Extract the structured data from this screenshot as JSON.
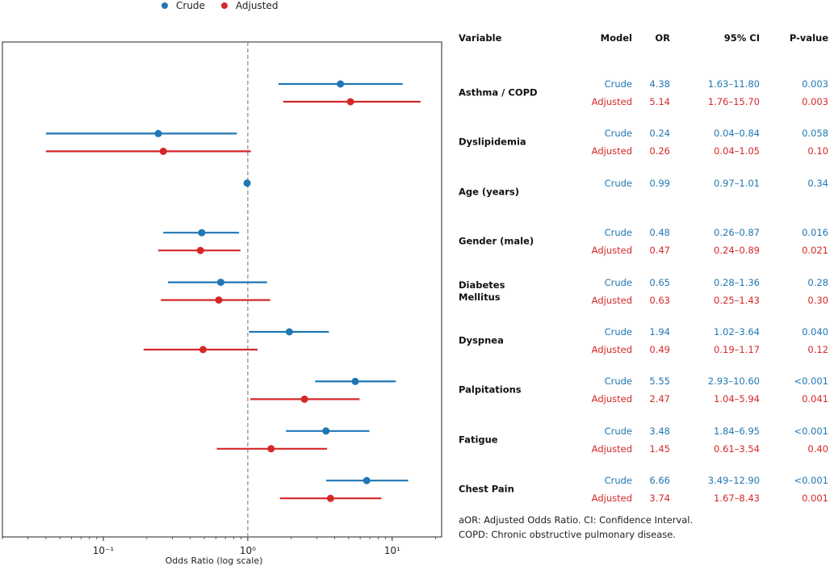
{
  "legend": {
    "crude": "Crude",
    "adjusted": "Adjusted"
  },
  "colors": {
    "crude": "#1f77b4",
    "adjusted": "#d62728"
  },
  "table": {
    "headers": {
      "variable": "Variable",
      "model": "Model",
      "or": "OR",
      "ci": "95% CI",
      "p": "P-value"
    }
  },
  "notes": [
    "aOR: Adjusted Odds Ratio. CI: Confidence Interval.",
    "COPD: Chronic obstructive pulmonary disease."
  ],
  "chart_data": {
    "type": "forest",
    "xlabel": "Odds Ratio (log scale)",
    "xscale": "log",
    "xlim": [
      0.02,
      22
    ],
    "xticks": [
      {
        "value": 0.1,
        "label": "10⁻¹"
      },
      {
        "value": 1,
        "label": "10⁰"
      },
      {
        "value": 10,
        "label": "10¹"
      }
    ],
    "reference_line": 1,
    "legend_position": "top-center",
    "variables": [
      {
        "name": "Asthma / COPD",
        "rows": [
          {
            "model": "Crude",
            "or": 4.38,
            "lo": 1.63,
            "hi": 11.8,
            "or_text": "4.38",
            "ci_text": "1.63–11.80",
            "p": "0.003"
          },
          {
            "model": "Adjusted",
            "or": 5.14,
            "lo": 1.76,
            "hi": 15.7,
            "or_text": "5.14",
            "ci_text": "1.76–15.70",
            "p": "0.003"
          }
        ]
      },
      {
        "name": "Dyslipidemia",
        "rows": [
          {
            "model": "Crude",
            "or": 0.24,
            "lo": 0.04,
            "hi": 0.84,
            "or_text": "0.24",
            "ci_text": "0.04–0.84",
            "p": "0.058"
          },
          {
            "model": "Adjusted",
            "or": 0.26,
            "lo": 0.04,
            "hi": 1.05,
            "or_text": "0.26",
            "ci_text": "0.04–1.05",
            "p": "0.10"
          }
        ]
      },
      {
        "name": "Age (years)",
        "rows": [
          {
            "model": "Crude",
            "or": 0.99,
            "lo": 0.97,
            "hi": 1.01,
            "or_text": "0.99",
            "ci_text": "0.97–1.01",
            "p": "0.34"
          }
        ]
      },
      {
        "name": "Gender (male)",
        "rows": [
          {
            "model": "Crude",
            "or": 0.48,
            "lo": 0.26,
            "hi": 0.87,
            "or_text": "0.48",
            "ci_text": "0.26–0.87",
            "p": "0.016"
          },
          {
            "model": "Adjusted",
            "or": 0.47,
            "lo": 0.24,
            "hi": 0.89,
            "or_text": "0.47",
            "ci_text": "0.24–0.89",
            "p": "0.021"
          }
        ]
      },
      {
        "name": "Diabetes\nMellitus",
        "rows": [
          {
            "model": "Crude",
            "or": 0.65,
            "lo": 0.28,
            "hi": 1.36,
            "or_text": "0.65",
            "ci_text": "0.28–1.36",
            "p": "0.28"
          },
          {
            "model": "Adjusted",
            "or": 0.63,
            "lo": 0.25,
            "hi": 1.43,
            "or_text": "0.63",
            "ci_text": "0.25–1.43",
            "p": "0.30"
          }
        ]
      },
      {
        "name": "Dyspnea",
        "rows": [
          {
            "model": "Crude",
            "or": 1.94,
            "lo": 1.02,
            "hi": 3.64,
            "or_text": "1.94",
            "ci_text": "1.02–3.64",
            "p": "0.040"
          },
          {
            "model": "Adjusted",
            "or": 0.49,
            "lo": 0.19,
            "hi": 1.17,
            "or_text": "0.49",
            "ci_text": "0.19–1.17",
            "p": "0.12"
          }
        ]
      },
      {
        "name": "Palpitations",
        "rows": [
          {
            "model": "Crude",
            "or": 5.55,
            "lo": 2.93,
            "hi": 10.6,
            "or_text": "5.55",
            "ci_text": "2.93–10.60",
            "p": "<0.001"
          },
          {
            "model": "Adjusted",
            "or": 2.47,
            "lo": 1.04,
            "hi": 5.94,
            "or_text": "2.47",
            "ci_text": "1.04–5.94",
            "p": "0.041"
          }
        ]
      },
      {
        "name": "Fatigue",
        "rows": [
          {
            "model": "Crude",
            "or": 3.48,
            "lo": 1.84,
            "hi": 6.95,
            "or_text": "3.48",
            "ci_text": "1.84–6.95",
            "p": "<0.001"
          },
          {
            "model": "Adjusted",
            "or": 1.45,
            "lo": 0.61,
            "hi": 3.54,
            "or_text": "1.45",
            "ci_text": "0.61–3.54",
            "p": "0.40"
          }
        ]
      },
      {
        "name": "Chest Pain",
        "rows": [
          {
            "model": "Crude",
            "or": 6.66,
            "lo": 3.49,
            "hi": 12.9,
            "or_text": "6.66",
            "ci_text": "3.49–12.90",
            "p": "<0.001"
          },
          {
            "model": "Adjusted",
            "or": 3.74,
            "lo": 1.67,
            "hi": 8.43,
            "or_text": "3.74",
            "ci_text": "1.67–8.43",
            "p": "0.001"
          }
        ]
      }
    ]
  }
}
